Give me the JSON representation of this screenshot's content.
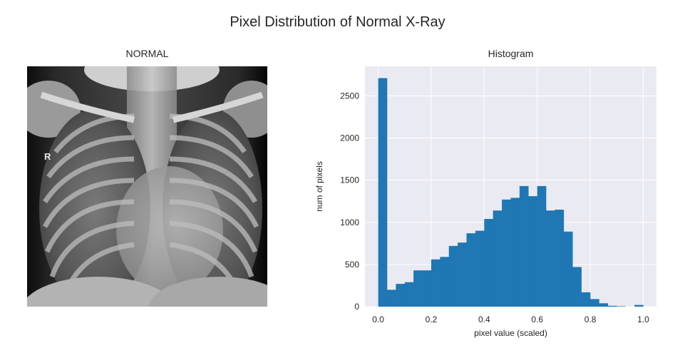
{
  "figure": {
    "suptitle": "Pixel Distribution of Normal X-Ray"
  },
  "image_panel": {
    "title": "NORMAL",
    "image_description": "chest-xray-normal",
    "marker_letter": "R"
  },
  "chart_data": {
    "type": "bar",
    "title": "Histogram",
    "xlabel": "pixel value (scaled)",
    "ylabel": "num of pixels",
    "xlim": [
      -0.05,
      1.05
    ],
    "ylim": [
      0,
      2850
    ],
    "xticks": [
      0.0,
      0.2,
      0.4,
      0.6,
      0.8,
      1.0
    ],
    "xtick_labels": [
      "0.0",
      "0.2",
      "0.4",
      "0.6",
      "0.8",
      "1.0"
    ],
    "yticks": [
      0,
      500,
      1000,
      1500,
      2000,
      2500
    ],
    "ytick_labels": [
      "0",
      "500",
      "1000",
      "1500",
      "2000",
      "2500"
    ],
    "bin_width": 0.0333,
    "bin_starts": [
      0.0,
      0.0333,
      0.0667,
      0.1,
      0.1333,
      0.1667,
      0.2,
      0.2333,
      0.2667,
      0.3,
      0.3333,
      0.3667,
      0.4,
      0.4333,
      0.4667,
      0.5,
      0.5333,
      0.5667,
      0.6,
      0.6333,
      0.6667,
      0.7,
      0.7333,
      0.7667,
      0.8,
      0.8333,
      0.8667,
      0.9,
      0.9333,
      0.9667
    ],
    "values": [
      2710,
      200,
      270,
      290,
      430,
      430,
      560,
      590,
      720,
      760,
      870,
      900,
      1040,
      1140,
      1270,
      1290,
      1430,
      1310,
      1430,
      1140,
      1150,
      890,
      470,
      170,
      90,
      40,
      10,
      5,
      0,
      20
    ],
    "bar_color": "#1f77b4",
    "background_color": "#eaeaf2",
    "grid": true,
    "grid_color": "#ffffff"
  }
}
